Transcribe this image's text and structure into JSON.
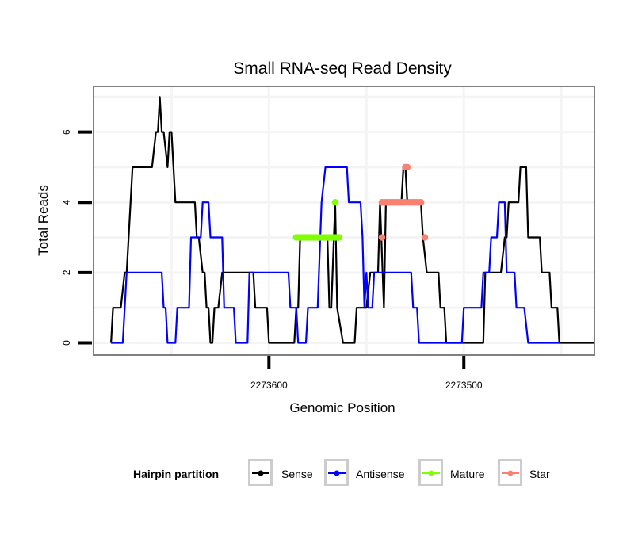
{
  "chart_data": {
    "type": "line",
    "title": "Small RNA-seq Read Density",
    "xlabel": "Genomic Position",
    "ylabel": "Total Reads",
    "x_reversed": true,
    "xlim": [
      2273690,
      2273433
    ],
    "ylim": [
      -0.35,
      7.3
    ],
    "x_ticks": [
      2273600,
      2273500
    ],
    "x_tick_labels": [
      "2273600",
      "2273500"
    ],
    "y_ticks": [
      0,
      2,
      4,
      6
    ],
    "y_tick_labels": [
      "0",
      "2",
      "4",
      "6"
    ],
    "grid": true,
    "legend": {
      "title": "Hairpin partition",
      "position": "bottom",
      "entries": [
        {
          "name": "Sense",
          "color": "#000000"
        },
        {
          "name": "Antisense",
          "color": "#0000ff"
        },
        {
          "name": "Mature",
          "color": "#7fff00"
        },
        {
          "name": "Star",
          "color": "#fa8072"
        }
      ]
    },
    "series": [
      {
        "name": "Sense",
        "color": "#000000",
        "points": [
          [
            2273681,
            0
          ],
          [
            2273680,
            1
          ],
          [
            2273676,
            1
          ],
          [
            2273674,
            2
          ],
          [
            2273673,
            2
          ],
          [
            2273670,
            5
          ],
          [
            2273660,
            5
          ],
          [
            2273658,
            6
          ],
          [
            2273657,
            6
          ],
          [
            2273656,
            7
          ],
          [
            2273655,
            6
          ],
          [
            2273654,
            6
          ],
          [
            2273652,
            5
          ],
          [
            2273651,
            6
          ],
          [
            2273650,
            6
          ],
          [
            2273648,
            4
          ],
          [
            2273638,
            4
          ],
          [
            2273637,
            3
          ],
          [
            2273636,
            3
          ],
          [
            2273634,
            2
          ],
          [
            2273633,
            2
          ],
          [
            2273632,
            1
          ],
          [
            2273631,
            1
          ],
          [
            2273630,
            0
          ],
          [
            2273629,
            0
          ],
          [
            2273628,
            1
          ],
          [
            2273626,
            1
          ],
          [
            2273624,
            2
          ],
          [
            2273608,
            2
          ],
          [
            2273607,
            1
          ],
          [
            2273601,
            1
          ],
          [
            2273600,
            0
          ],
          [
            2273587,
            0
          ],
          [
            2273586,
            1
          ],
          [
            2273585,
            1
          ],
          [
            2273584,
            3
          ],
          [
            2273570,
            3
          ],
          [
            2273569,
            1
          ],
          [
            2273568,
            1
          ],
          [
            2273566,
            4
          ],
          [
            2273565,
            1
          ],
          [
            2273562,
            0
          ],
          [
            2273556,
            0
          ],
          [
            2273555,
            1
          ],
          [
            2273550,
            1
          ],
          [
            2273548,
            2
          ],
          [
            2273544,
            2
          ],
          [
            2273543,
            4
          ],
          [
            2273541,
            1
          ],
          [
            2273540,
            4
          ],
          [
            2273532,
            4
          ],
          [
            2273531,
            5
          ],
          [
            2273530,
            5
          ],
          [
            2273529,
            4
          ],
          [
            2273522,
            4
          ],
          [
            2273521,
            3
          ],
          [
            2273519,
            2
          ],
          [
            2273513,
            2
          ],
          [
            2273512,
            1
          ],
          [
            2273510,
            1
          ],
          [
            2273509,
            0
          ],
          [
            2273490,
            0
          ],
          [
            2273489,
            2
          ],
          [
            2273481,
            2
          ],
          [
            2273479,
            3
          ],
          [
            2273478,
            3
          ],
          [
            2273477,
            4
          ],
          [
            2273472,
            4
          ],
          [
            2273471,
            5
          ],
          [
            2273468,
            5
          ],
          [
            2273467,
            3
          ],
          [
            2273461,
            3
          ],
          [
            2273460,
            2
          ],
          [
            2273456,
            2
          ],
          [
            2273455,
            1
          ],
          [
            2273452,
            1
          ],
          [
            2273451,
            0
          ],
          [
            2273433,
            0
          ]
        ]
      },
      {
        "name": "Antisense",
        "color": "#0000ff",
        "points": [
          [
            2273681,
            0
          ],
          [
            2273675,
            0
          ],
          [
            2273673,
            2
          ],
          [
            2273655,
            2
          ],
          [
            2273654,
            1
          ],
          [
            2273653,
            1
          ],
          [
            2273652,
            0
          ],
          [
            2273648,
            0
          ],
          [
            2273647,
            1
          ],
          [
            2273641,
            1
          ],
          [
            2273640,
            3
          ],
          [
            2273635,
            3
          ],
          [
            2273634,
            4
          ],
          [
            2273631,
            4
          ],
          [
            2273630,
            3
          ],
          [
            2273624,
            3
          ],
          [
            2273623,
            1
          ],
          [
            2273618,
            1
          ],
          [
            2273617,
            0
          ],
          [
            2273611,
            0
          ],
          [
            2273610,
            2
          ],
          [
            2273590,
            2
          ],
          [
            2273589,
            1
          ],
          [
            2273586,
            1
          ],
          [
            2273585,
            0
          ],
          [
            2273581,
            0
          ],
          [
            2273580,
            1
          ],
          [
            2273575,
            1
          ],
          [
            2273573,
            4
          ],
          [
            2273571,
            5
          ],
          [
            2273560,
            5
          ],
          [
            2273559,
            4
          ],
          [
            2273553,
            4
          ],
          [
            2273552,
            3
          ],
          [
            2273551,
            1
          ],
          [
            2273550,
            2
          ],
          [
            2273549,
            1
          ],
          [
            2273547,
            1
          ],
          [
            2273546,
            2
          ],
          [
            2273530,
            2
          ],
          [
            2273527,
            2
          ],
          [
            2273526,
            1
          ],
          [
            2273524,
            1
          ],
          [
            2273523,
            0
          ],
          [
            2273501,
            0
          ],
          [
            2273500,
            1
          ],
          [
            2273491,
            1
          ],
          [
            2273490,
            2
          ],
          [
            2273487,
            2
          ],
          [
            2273486,
            3
          ],
          [
            2273483,
            3
          ],
          [
            2273482,
            4
          ],
          [
            2273479,
            4
          ],
          [
            2273478,
            2
          ],
          [
            2273474,
            2
          ],
          [
            2273473,
            1
          ],
          [
            2273469,
            1
          ],
          [
            2273467,
            0
          ],
          [
            2273451,
            0
          ]
        ]
      },
      {
        "name": "Mature",
        "color": "#7fff00",
        "points": [
          [
            2273586,
            3
          ],
          [
            2273584,
            3
          ],
          [
            2273582,
            3
          ],
          [
            2273580,
            3
          ],
          [
            2273578,
            3
          ],
          [
            2273576,
            3
          ],
          [
            2273574,
            3
          ],
          [
            2273572,
            3
          ],
          [
            2273570,
            3
          ],
          [
            2273568,
            3
          ],
          [
            2273566,
            3
          ],
          [
            2273564,
            3
          ],
          [
            2273566,
            4
          ]
        ]
      },
      {
        "name": "Star",
        "color": "#fa8072",
        "points": [
          [
            2273542,
            3
          ],
          [
            2273542,
            4
          ],
          [
            2273540,
            4
          ],
          [
            2273538,
            4
          ],
          [
            2273536,
            4
          ],
          [
            2273534,
            4
          ],
          [
            2273532,
            4
          ],
          [
            2273530,
            4
          ],
          [
            2273530,
            5
          ],
          [
            2273529,
            5
          ],
          [
            2273528,
            4
          ],
          [
            2273526,
            4
          ],
          [
            2273524,
            4
          ],
          [
            2273522,
            4
          ],
          [
            2273520,
            3
          ]
        ]
      }
    ]
  }
}
